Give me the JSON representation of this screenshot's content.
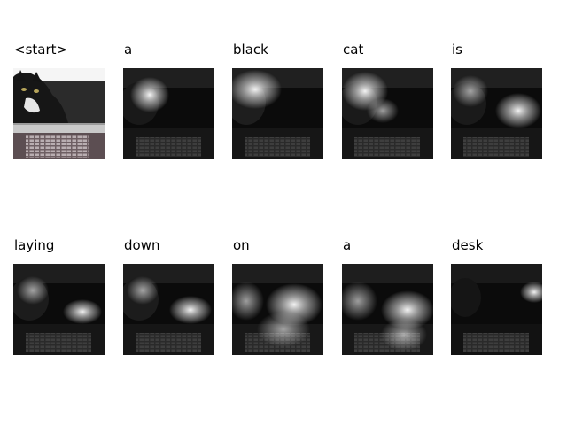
{
  "caption_words": [
    "<start>",
    "a",
    "black",
    "cat",
    "is",
    "laying",
    "down",
    "on",
    "a",
    "desk"
  ],
  "panels": [
    {
      "image": "photo-cat-on-laptop",
      "attention_focus": null
    },
    {
      "image": "attention-map",
      "attention_focus": "cat-head"
    },
    {
      "image": "attention-map",
      "attention_focus": "cat-head"
    },
    {
      "image": "attention-map",
      "attention_focus": "cat-body"
    },
    {
      "image": "attention-map",
      "attention_focus": "cat-body"
    },
    {
      "image": "attention-map",
      "attention_focus": "desk-right"
    },
    {
      "image": "attention-map",
      "attention_focus": "desk-right"
    },
    {
      "image": "attention-map",
      "attention_focus": "desk-wide"
    },
    {
      "image": "attention-map",
      "attention_focus": "desk-wide"
    },
    {
      "image": "attention-map",
      "attention_focus": "background-right"
    }
  ]
}
